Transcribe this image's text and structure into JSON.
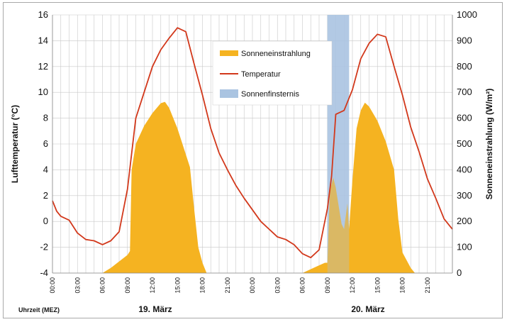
{
  "chart_data": {
    "type": "area",
    "x_unit": "hours (MEZ)",
    "x_range": [
      0,
      48
    ],
    "x_tick_labels": [
      "00:00",
      "03:00",
      "06:00",
      "09:00",
      "12:00",
      "15:00",
      "18:00",
      "21:00",
      "00:00",
      "03:00",
      "06:00",
      "09:00",
      "12:00",
      "15:00",
      "18:00",
      "21:00"
    ],
    "xlabel": "Uhrzeit (MEZ)",
    "date_labels": [
      {
        "text": "19. März",
        "center_hour": 12
      },
      {
        "text": "20. März",
        "center_hour": 36
      }
    ],
    "y_left": {
      "label": "Lufttemperatur (°C)",
      "range": [
        -4,
        16
      ],
      "ticks": [
        "-4",
        "-2",
        "0",
        "2",
        "4",
        "6",
        "8",
        "10",
        "12",
        "14",
        "16"
      ]
    },
    "y_right": {
      "label": "Sonneneinstrahlung (W/m²)",
      "range": [
        0,
        1000
      ],
      "ticks": [
        "0",
        "100",
        "200",
        "300",
        "400",
        "500",
        "600",
        "700",
        "800",
        "900",
        "1000"
      ]
    },
    "grid": true,
    "legend_position": "top-center",
    "series": [
      {
        "name": "Sonneneinstrahlung",
        "kind": "area",
        "axis": "right",
        "color": "#f5b321",
        "points": [
          [
            6,
            0
          ],
          [
            7,
            20
          ],
          [
            8,
            45
          ],
          [
            9,
            70
          ],
          [
            9.3,
            85
          ],
          [
            9.5,
            400
          ],
          [
            10,
            500
          ],
          [
            11,
            570
          ],
          [
            12,
            620
          ],
          [
            13,
            658
          ],
          [
            13.5,
            663
          ],
          [
            14,
            640
          ],
          [
            15,
            560
          ],
          [
            16,
            460
          ],
          [
            16.5,
            410
          ],
          [
            17,
            250
          ],
          [
            17.5,
            100
          ],
          [
            18,
            40
          ],
          [
            18.5,
            0
          ],
          [
            30,
            0
          ],
          [
            31,
            15
          ],
          [
            32,
            30
          ],
          [
            32.7,
            40
          ],
          [
            33,
            40
          ],
          [
            33.3,
            320
          ],
          [
            33.7,
            370
          ],
          [
            34,
            330
          ],
          [
            34.3,
            270
          ],
          [
            34.7,
            190
          ],
          [
            35,
            170
          ],
          [
            35.4,
            270
          ],
          [
            35.6,
            170
          ],
          [
            36,
            360
          ],
          [
            36.5,
            560
          ],
          [
            37,
            630
          ],
          [
            37.5,
            660
          ],
          [
            38,
            645
          ],
          [
            39,
            590
          ],
          [
            40,
            510
          ],
          [
            41,
            400
          ],
          [
            41.5,
            210
          ],
          [
            42,
            80
          ],
          [
            43,
            20
          ],
          [
            43.5,
            0
          ]
        ]
      },
      {
        "name": "Temperatur",
        "kind": "line",
        "axis": "left",
        "color": "#d2381b",
        "points": [
          [
            0,
            1.6
          ],
          [
            0.5,
            0.8
          ],
          [
            1,
            0.4
          ],
          [
            2,
            0.1
          ],
          [
            3,
            -0.9
          ],
          [
            4,
            -1.4
          ],
          [
            5,
            -1.5
          ],
          [
            6,
            -1.8
          ],
          [
            7,
            -1.5
          ],
          [
            8,
            -0.8
          ],
          [
            9,
            2.5
          ],
          [
            10,
            8.0
          ],
          [
            11,
            10.0
          ],
          [
            12,
            12.0
          ],
          [
            13,
            13.3
          ],
          [
            14,
            14.2
          ],
          [
            15,
            15.0
          ],
          [
            16,
            14.7
          ],
          [
            17,
            12.2
          ],
          [
            18,
            9.8
          ],
          [
            19,
            7.2
          ],
          [
            20,
            5.3
          ],
          [
            21,
            4.0
          ],
          [
            22,
            2.8
          ],
          [
            23,
            1.8
          ],
          [
            24,
            0.9
          ],
          [
            25,
            0.0
          ],
          [
            26,
            -0.6
          ],
          [
            27,
            -1.2
          ],
          [
            28,
            -1.4
          ],
          [
            29,
            -1.8
          ],
          [
            30,
            -2.5
          ],
          [
            31,
            -2.8
          ],
          [
            32,
            -2.2
          ],
          [
            33,
            1.0
          ],
          [
            33.5,
            3.5
          ],
          [
            34,
            8.3
          ],
          [
            35,
            8.6
          ],
          [
            36,
            10.2
          ],
          [
            37,
            12.6
          ],
          [
            38,
            13.8
          ],
          [
            39,
            14.5
          ],
          [
            40,
            14.3
          ],
          [
            41,
            12.0
          ],
          [
            42,
            9.8
          ],
          [
            43,
            7.3
          ],
          [
            44,
            5.4
          ],
          [
            45,
            3.3
          ],
          [
            46,
            1.8
          ],
          [
            47,
            0.2
          ],
          [
            48,
            -0.6
          ]
        ]
      },
      {
        "name": "Sonnenfinsternis",
        "kind": "band",
        "color": "#aac4e1",
        "x_range": [
          33,
          35.6
        ]
      }
    ]
  }
}
